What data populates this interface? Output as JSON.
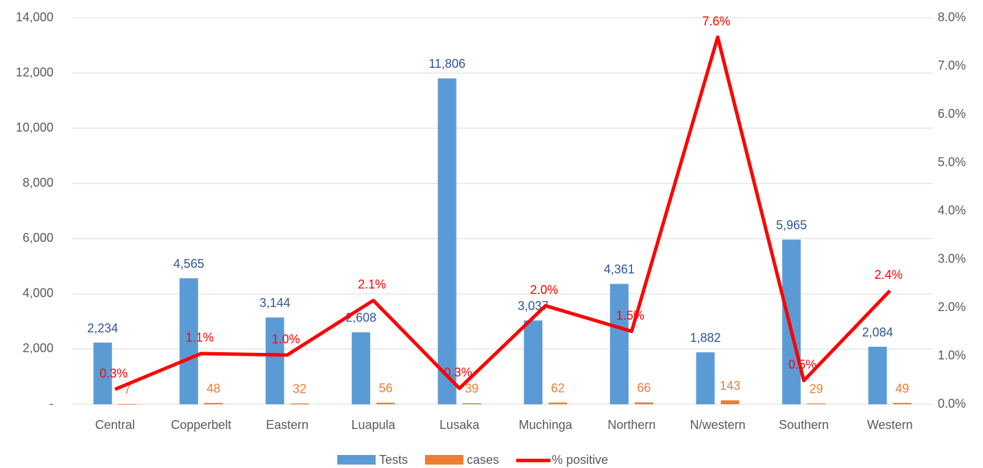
{
  "chart_data": {
    "type": "bar-line",
    "categories": [
      "Central",
      "Copperbelt",
      "Eastern",
      "Luapula",
      "Lusaka",
      "Muchinga",
      "Northern",
      "N/western",
      "Southern",
      "Western"
    ],
    "series": [
      {
        "name": "Tests",
        "type": "bar",
        "color": "#5b9bd5",
        "label_color": "#2f5597",
        "values": [
          2234,
          4565,
          3144,
          2608,
          11806,
          3037,
          4361,
          1882,
          5965,
          2084
        ],
        "value_labels": [
          "2,234",
          "4,565",
          "3,144",
          "2,608",
          "11,806",
          "3,037",
          "4,361",
          "1,882",
          "5,965",
          "2,084"
        ]
      },
      {
        "name": "cases",
        "type": "bar",
        "color": "#ed7d31",
        "label_color": "#ed7d31",
        "values": [
          7,
          48,
          32,
          56,
          39,
          62,
          66,
          143,
          29,
          49
        ]
      },
      {
        "name": "% positive",
        "type": "line",
        "axis": "y2",
        "color": "#ff0000",
        "label_color": "#ff0000",
        "values": [
          0.31,
          1.05,
          1.02,
          2.15,
          0.33,
          2.04,
          1.51,
          7.6,
          0.49,
          2.35
        ],
        "value_labels": [
          "0.3%",
          "1.1%",
          "1.0%",
          "2.1%",
          "0.3%",
          "2.0%",
          "1.5%",
          "7.6%",
          "0.5%",
          "2.4%"
        ]
      }
    ],
    "ylim": [
      0,
      14000
    ],
    "yticks": [
      {
        "value": 0,
        "label": "-"
      },
      {
        "value": 2000,
        "label": "2,000"
      },
      {
        "value": 4000,
        "label": "4,000"
      },
      {
        "value": 6000,
        "label": "6,000"
      },
      {
        "value": 8000,
        "label": "8,000"
      },
      {
        "value": 10000,
        "label": "10,000"
      },
      {
        "value": 12000,
        "label": "12,000"
      },
      {
        "value": 14000,
        "label": "14,000"
      }
    ],
    "y2lim": [
      0,
      8
    ],
    "y2ticks": [
      {
        "value": 0,
        "label": "0.0%"
      },
      {
        "value": 1,
        "label": "1.0%"
      },
      {
        "value": 2,
        "label": "2.0%"
      },
      {
        "value": 3,
        "label": "3.0%"
      },
      {
        "value": 4,
        "label": "4.0%"
      },
      {
        "value": 5,
        "label": "5.0%"
      },
      {
        "value": 6,
        "label": "6.0%"
      },
      {
        "value": 7,
        "label": "7.0%"
      },
      {
        "value": 8,
        "label": "8.0%"
      }
    ],
    "grid": true,
    "legend": "bottom"
  }
}
